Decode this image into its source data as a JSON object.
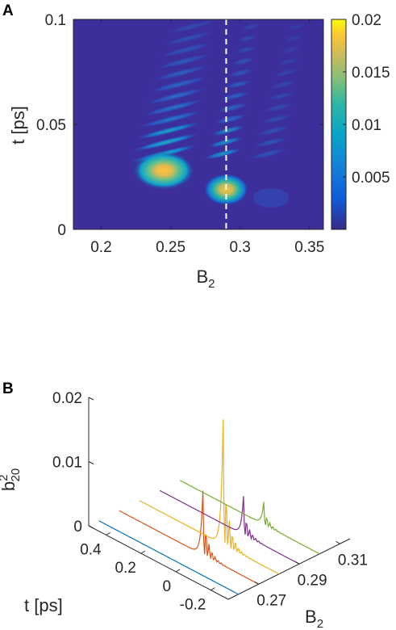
{
  "chart_data": [
    {
      "panel": "A",
      "type": "heatmap",
      "xlabel": "B",
      "xlabel_sub": "2",
      "ylabel": "t [ps]",
      "xlim": [
        0.18,
        0.36
      ],
      "ylim": [
        0,
        0.1
      ],
      "xticks": [
        "0.2",
        "0.25",
        "0.3",
        "0.35"
      ],
      "xtick_values": [
        0.2,
        0.25,
        0.3,
        0.35
      ],
      "yticks": [
        "0",
        "0.05",
        "0.1"
      ],
      "ytick_values": [
        0,
        0.05,
        0.1
      ],
      "colorbar": {
        "range": [
          0,
          0.02
        ],
        "ticks": [
          "0.005",
          "0.01",
          "0.015",
          "0.02"
        ],
        "tick_values": [
          0.005,
          0.01,
          0.015,
          0.02
        ],
        "colormap": "parula"
      },
      "dashed_line_x": 0.29,
      "dashed_line_color": "#ffffff",
      "peaks": [
        {
          "B2": 0.245,
          "t": 0.028,
          "value": 0.016
        },
        {
          "B2": 0.29,
          "t": 0.019,
          "value": 0.0155
        }
      ]
    },
    {
      "panel": "B",
      "type": "line",
      "projection": "3d-waterfall",
      "zlabel": "b",
      "zlabel_sup": "2",
      "zlabel_sub": "20",
      "xlabel": "t [ps]",
      "ylabel": "B",
      "ylabel_sub": "2",
      "zlim": [
        0,
        0.02
      ],
      "zticks": [
        "0",
        "0.01",
        "0.02"
      ],
      "tticks": [
        "0.4",
        "0.2",
        "0",
        "-0.2"
      ],
      "bticks": [
        "0.27",
        "0.29",
        "0.31"
      ],
      "series": [
        {
          "B2": 0.26,
          "color": "#0072bd",
          "peak_t": 0.0,
          "peak_value": 0.0
        },
        {
          "B2": 0.27,
          "color": "#d95319",
          "peak_t": 0.02,
          "peak_value": 0.01
        },
        {
          "B2": 0.28,
          "color": "#edb120",
          "peak_t": 0.02,
          "peak_value": 0.0195
        },
        {
          "B2": 0.29,
          "color": "#7e2f8e",
          "peak_t": 0.02,
          "peak_value": 0.006
        },
        {
          "B2": 0.3,
          "color": "#77ac30",
          "peak_t": 0.02,
          "peak_value": 0.0035
        }
      ]
    }
  ],
  "labels": {
    "panel_a": "A",
    "panel_b": "B"
  }
}
